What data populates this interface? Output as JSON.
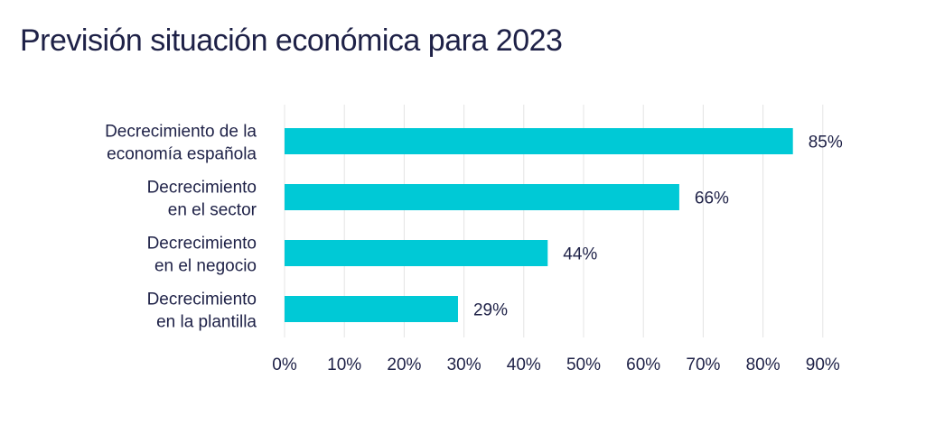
{
  "chart_data": {
    "type": "bar",
    "orientation": "horizontal",
    "title": "Previsión situación económica para 2023",
    "categories": [
      [
        "Decrecimiento de la",
        "economía española"
      ],
      [
        "Decrecimiento",
        "en el sector"
      ],
      [
        "Decrecimiento",
        "en el negocio"
      ],
      [
        "Decrecimiento",
        "en la plantilla"
      ]
    ],
    "values": [
      85,
      66,
      44,
      29
    ],
    "value_labels": [
      "85%",
      "66%",
      "44%",
      "29%"
    ],
    "xlim": [
      0,
      90
    ],
    "xticks": [
      "0%",
      "10%",
      "20%",
      "30%",
      "40%",
      "50%",
      "60%",
      "70%",
      "80%",
      "90%"
    ],
    "grid": "vertical",
    "bar_color": "#00c9d6",
    "grid_color": "#e4e4e4"
  }
}
